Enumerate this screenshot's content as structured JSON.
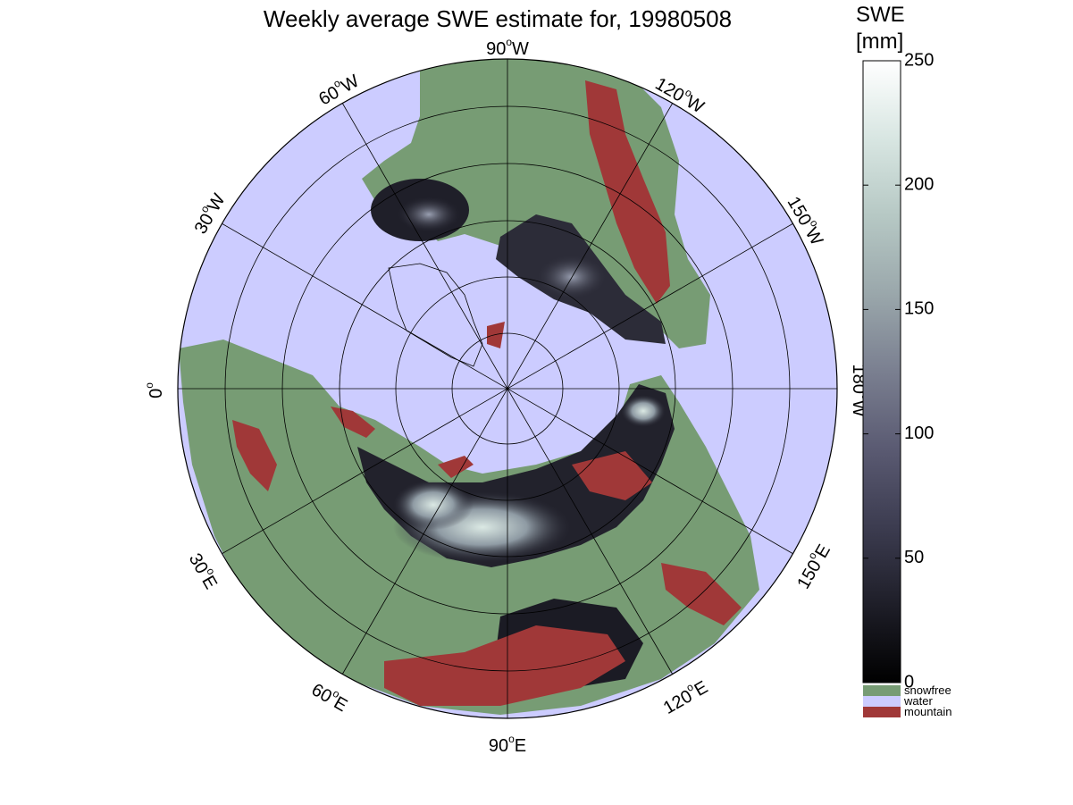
{
  "title": "Weekly average SWE estimate for, 19980508",
  "map": {
    "projection": "polar-stereographic-north",
    "graticule": {
      "meridian_step_deg": 30,
      "latitude_circles": 6
    },
    "longitude_labels": [
      {
        "id": "lon-90w",
        "deg": "90",
        "hemi": "W"
      },
      {
        "id": "lon-120w",
        "deg": "120",
        "hemi": "W"
      },
      {
        "id": "lon-150w",
        "deg": "150",
        "hemi": "W"
      },
      {
        "id": "lon-180w",
        "deg": "180",
        "hemi": "W"
      },
      {
        "id": "lon-150e",
        "deg": "150",
        "hemi": "E"
      },
      {
        "id": "lon-120e",
        "deg": "120",
        "hemi": "E"
      },
      {
        "id": "lon-90e",
        "deg": "90",
        "hemi": "E"
      },
      {
        "id": "lon-60e",
        "deg": "60",
        "hemi": "E"
      },
      {
        "id": "lon-30e",
        "deg": "30",
        "hemi": "E"
      },
      {
        "id": "lon-0",
        "deg": "0",
        "hemi": ""
      },
      {
        "id": "lon-30w",
        "deg": "30",
        "hemi": "W"
      },
      {
        "id": "lon-60w",
        "deg": "60",
        "hemi": "W"
      }
    ],
    "degree_symbol": "o"
  },
  "colorbar": {
    "title_line1": "SWE",
    "title_line2": "[mm]",
    "min": 0,
    "max": 250,
    "ticks": [
      "0",
      "50",
      "100",
      "150",
      "200",
      "250"
    ],
    "colormap_hex": [
      "#000000",
      "#1e1e28",
      "#3c3c50",
      "#5a5a72",
      "#7a7f90",
      "#9aa7ab",
      "#b6c8c4",
      "#d8e6e2",
      "#ffffff"
    ]
  },
  "legend": [
    {
      "label": "snowfree",
      "color": "#779c74"
    },
    {
      "label": "water",
      "color": "#ccccff"
    },
    {
      "label": "mountain",
      "color": "#a03838"
    }
  ],
  "colors": {
    "water": "#ccccff",
    "snowfree": "#779c74",
    "mountain": "#a03838",
    "snow_low": "#1a1a22",
    "snow_mid": "#5c5e72",
    "snow_high": "#cfe2de"
  }
}
